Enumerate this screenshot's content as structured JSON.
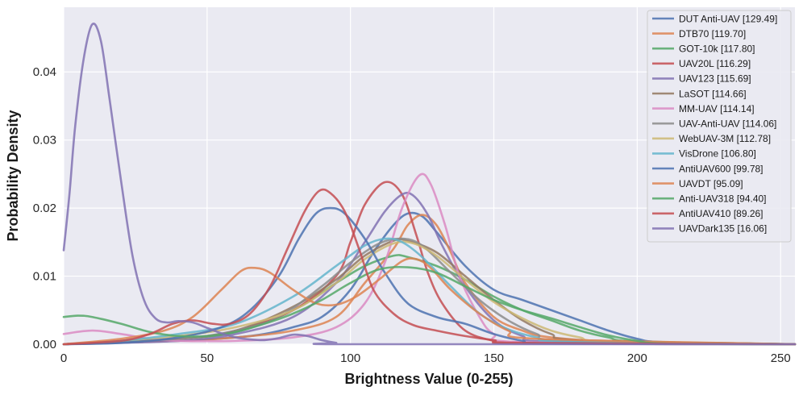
{
  "chart_data": {
    "type": "line",
    "title": "",
    "xlabel": "Brightness Value (0-255)",
    "ylabel": "Probability Density",
    "xlim": [
      0,
      255
    ],
    "ylim": [
      0,
      0.0495
    ],
    "xticks": [
      0,
      50,
      100,
      150,
      200,
      250
    ],
    "yticks": [
      0,
      0.01,
      0.02,
      0.03,
      0.04
    ],
    "xtick_labels": [
      "0",
      "50",
      "100",
      "150",
      "200",
      "250"
    ],
    "ytick_labels": [
      "0.00",
      "0.01",
      "0.02",
      "0.03",
      "0.04"
    ],
    "grid": true,
    "legend_position": "top-right",
    "background": "#eaeaf2",
    "series": [
      {
        "name": "DUT Anti-UAV [129.49]",
        "color": "#4c72b0",
        "points": [
          [
            0,
            0
          ],
          [
            40,
            0.0005
          ],
          [
            60,
            0.001
          ],
          [
            70,
            0.0015
          ],
          [
            80,
            0.0025
          ],
          [
            90,
            0.004
          ],
          [
            100,
            0.008
          ],
          [
            108,
            0.0135
          ],
          [
            115,
            0.0175
          ],
          [
            120,
            0.0192
          ],
          [
            125,
            0.0188
          ],
          [
            130,
            0.0165
          ],
          [
            140,
            0.0115
          ],
          [
            150,
            0.008
          ],
          [
            160,
            0.0065
          ],
          [
            170,
            0.005
          ],
          [
            180,
            0.0035
          ],
          [
            190,
            0.002
          ],
          [
            200,
            0.0008
          ],
          [
            210,
            0.0003
          ],
          [
            255,
            0
          ]
        ]
      },
      {
        "name": "DTB70 [119.70]",
        "color": "#dd8452",
        "points": [
          [
            0,
            0
          ],
          [
            40,
            0.0005
          ],
          [
            60,
            0.001
          ],
          [
            80,
            0.002
          ],
          [
            95,
            0.004
          ],
          [
            105,
            0.009
          ],
          [
            115,
            0.014
          ],
          [
            120,
            0.0175
          ],
          [
            125,
            0.019
          ],
          [
            130,
            0.0175
          ],
          [
            135,
            0.0135
          ],
          [
            140,
            0.009
          ],
          [
            150,
            0.004
          ],
          [
            160,
            0.002
          ],
          [
            170,
            0.001
          ],
          [
            200,
            0.0002
          ],
          [
            255,
            0
          ]
        ]
      },
      {
        "name": "GOT-10k [117.80]",
        "color": "#55a868",
        "points": [
          [
            0,
            0
          ],
          [
            40,
            0.0008
          ],
          [
            60,
            0.0018
          ],
          [
            80,
            0.005
          ],
          [
            95,
            0.009
          ],
          [
            105,
            0.0115
          ],
          [
            115,
            0.013
          ],
          [
            120,
            0.0128
          ],
          [
            130,
            0.0115
          ],
          [
            140,
            0.0095
          ],
          [
            150,
            0.007
          ],
          [
            160,
            0.005
          ],
          [
            170,
            0.0035
          ],
          [
            180,
            0.002
          ],
          [
            190,
            0.001
          ],
          [
            200,
            0.0004
          ],
          [
            255,
            0
          ]
        ]
      },
      {
        "name": "UAV20L [116.29]",
        "color": "#c44e52",
        "points": [
          [
            0,
            0
          ],
          [
            40,
            0.0008
          ],
          [
            60,
            0.002
          ],
          [
            80,
            0.005
          ],
          [
            95,
            0.01
          ],
          [
            100,
            0.015
          ],
          [
            105,
            0.0205
          ],
          [
            112,
            0.0238
          ],
          [
            118,
            0.022
          ],
          [
            123,
            0.016
          ],
          [
            127,
            0.0105
          ],
          [
            132,
            0.006
          ],
          [
            140,
            0.002
          ],
          [
            150,
            0.0005
          ],
          [
            160,
            0.0001
          ],
          [
            255,
            0
          ]
        ]
      },
      {
        "name": "UAV123 [115.69]",
        "color": "#8172b3",
        "points": [
          [
            0,
            0
          ],
          [
            40,
            0.0005
          ],
          [
            60,
            0.0015
          ],
          [
            80,
            0.004
          ],
          [
            95,
            0.009
          ],
          [
            105,
            0.015
          ],
          [
            112,
            0.0195
          ],
          [
            118,
            0.022
          ],
          [
            122,
            0.0218
          ],
          [
            127,
            0.019
          ],
          [
            132,
            0.0145
          ],
          [
            140,
            0.0085
          ],
          [
            150,
            0.0035
          ],
          [
            160,
            0.0012
          ],
          [
            170,
            0.0004
          ],
          [
            255,
            0
          ]
        ]
      },
      {
        "name": "LaSOT [114.66]",
        "color": "#937860",
        "points": [
          [
            0,
            0
          ],
          [
            40,
            0.0008
          ],
          [
            60,
            0.002
          ],
          [
            80,
            0.0055
          ],
          [
            95,
            0.0095
          ],
          [
            105,
            0.013
          ],
          [
            115,
            0.0152
          ],
          [
            120,
            0.0152
          ],
          [
            130,
            0.0135
          ],
          [
            140,
            0.01
          ],
          [
            150,
            0.0065
          ],
          [
            160,
            0.0035
          ],
          [
            170,
            0.0015
          ],
          [
            180,
            0.0006
          ],
          [
            255,
            0
          ]
        ]
      },
      {
        "name": "MM-UAV [114.14]",
        "color": "#da8bc3",
        "points": [
          [
            0,
            0.0015
          ],
          [
            10,
            0.002
          ],
          [
            20,
            0.0015
          ],
          [
            30,
            0.0008
          ],
          [
            40,
            0.0005
          ],
          [
            60,
            0.0005
          ],
          [
            80,
            0.001
          ],
          [
            95,
            0.0025
          ],
          [
            105,
            0.006
          ],
          [
            112,
            0.012
          ],
          [
            118,
            0.02
          ],
          [
            124,
            0.0248
          ],
          [
            128,
            0.0235
          ],
          [
            133,
            0.0175
          ],
          [
            138,
            0.01
          ],
          [
            145,
            0.004
          ],
          [
            150,
            0.0015
          ],
          [
            160,
            0.0003
          ],
          [
            255,
            0
          ]
        ]
      },
      {
        "name": "UAV-Anti-UAV [114.06]",
        "color": "#8c8c8c",
        "points": [
          [
            0,
            0
          ],
          [
            40,
            0.0008
          ],
          [
            60,
            0.002
          ],
          [
            75,
            0.004
          ],
          [
            90,
            0.0085
          ],
          [
            100,
            0.012
          ],
          [
            110,
            0.0148
          ],
          [
            118,
            0.0155
          ],
          [
            125,
            0.0145
          ],
          [
            135,
            0.0105
          ],
          [
            145,
            0.0065
          ],
          [
            155,
            0.0035
          ],
          [
            165,
            0.0015
          ],
          [
            175,
            0.0005
          ],
          [
            255,
            0
          ]
        ]
      },
      {
        "name": "WebUAV-3M [112.78]",
        "color": "#ccb974",
        "points": [
          [
            0,
            0
          ],
          [
            20,
            0.0005
          ],
          [
            40,
            0.0012
          ],
          [
            60,
            0.0025
          ],
          [
            80,
            0.005
          ],
          [
            95,
            0.009
          ],
          [
            105,
            0.0125
          ],
          [
            115,
            0.0148
          ],
          [
            122,
            0.0148
          ],
          [
            130,
            0.013
          ],
          [
            140,
            0.0095
          ],
          [
            150,
            0.0062
          ],
          [
            160,
            0.0038
          ],
          [
            170,
            0.002
          ],
          [
            180,
            0.001
          ],
          [
            190,
            0.0004
          ],
          [
            255,
            0
          ]
        ]
      },
      {
        "name": "VisDrone [106.80]",
        "color": "#64b5cd",
        "points": [
          [
            0,
            0
          ],
          [
            20,
            0.0005
          ],
          [
            40,
            0.0015
          ],
          [
            60,
            0.003
          ],
          [
            80,
            0.007
          ],
          [
            95,
            0.0115
          ],
          [
            105,
            0.0145
          ],
          [
            112,
            0.0155
          ],
          [
            118,
            0.015
          ],
          [
            125,
            0.0128
          ],
          [
            135,
            0.0085
          ],
          [
            145,
            0.0045
          ],
          [
            155,
            0.0022
          ],
          [
            165,
            0.001
          ],
          [
            175,
            0.0004
          ],
          [
            255,
            0
          ]
        ]
      },
      {
        "name": "AntiUAV600 [99.78]",
        "color": "#4c72b0",
        "points": [
          [
            0,
            0
          ],
          [
            20,
            0.0002
          ],
          [
            40,
            0.001
          ],
          [
            55,
            0.0025
          ],
          [
            65,
            0.005
          ],
          [
            75,
            0.01
          ],
          [
            82,
            0.0155
          ],
          [
            88,
            0.0192
          ],
          [
            93,
            0.02
          ],
          [
            98,
            0.0192
          ],
          [
            105,
            0.0155
          ],
          [
            112,
            0.0105
          ],
          [
            120,
            0.006
          ],
          [
            130,
            0.004
          ],
          [
            140,
            0.003
          ],
          [
            150,
            0.0015
          ],
          [
            160,
            0.0005
          ],
          [
            170,
            0.0001
          ],
          [
            255,
            0
          ]
        ]
      },
      {
        "name": "UAVDT [95.09]",
        "color": "#dd8452",
        "points": [
          [
            0,
            0
          ],
          [
            20,
            0.0008
          ],
          [
            35,
            0.002
          ],
          [
            45,
            0.004
          ],
          [
            55,
            0.008
          ],
          [
            62,
            0.0108
          ],
          [
            67,
            0.0112
          ],
          [
            72,
            0.0105
          ],
          [
            80,
            0.008
          ],
          [
            88,
            0.006
          ],
          [
            95,
            0.0058
          ],
          [
            102,
            0.007
          ],
          [
            110,
            0.0095
          ],
          [
            118,
            0.0122
          ],
          [
            123,
            0.0125
          ],
          [
            128,
            0.0112
          ],
          [
            135,
            0.008
          ],
          [
            145,
            0.0045
          ],
          [
            155,
            0.002
          ],
          [
            165,
            0.0008
          ],
          [
            255,
            0
          ]
        ]
      },
      {
        "name": "Anti-UAV318 [94.40]",
        "color": "#55a868",
        "points": [
          [
            0,
            0.004
          ],
          [
            5,
            0.0042
          ],
          [
            10,
            0.004
          ],
          [
            20,
            0.003
          ],
          [
            30,
            0.0018
          ],
          [
            40,
            0.0012
          ],
          [
            50,
            0.0012
          ],
          [
            60,
            0.0018
          ],
          [
            70,
            0.003
          ],
          [
            80,
            0.0045
          ],
          [
            90,
            0.0065
          ],
          [
            100,
            0.009
          ],
          [
            110,
            0.011
          ],
          [
            120,
            0.0113
          ],
          [
            130,
            0.0105
          ],
          [
            140,
            0.0085
          ],
          [
            150,
            0.0065
          ],
          [
            160,
            0.005
          ],
          [
            170,
            0.0038
          ],
          [
            180,
            0.0025
          ],
          [
            190,
            0.0013
          ],
          [
            200,
            0.0005
          ],
          [
            210,
            0.0001
          ],
          [
            255,
            0
          ]
        ]
      },
      {
        "name": "AntiUAV410 [89.26]",
        "color": "#c44e52",
        "points": [
          [
            0,
            0
          ],
          [
            20,
            0.0005
          ],
          [
            30,
            0.0015
          ],
          [
            38,
            0.003
          ],
          [
            45,
            0.0035
          ],
          [
            52,
            0.003
          ],
          [
            58,
            0.003
          ],
          [
            65,
            0.0045
          ],
          [
            72,
            0.0085
          ],
          [
            78,
            0.014
          ],
          [
            84,
            0.0195
          ],
          [
            89,
            0.0225
          ],
          [
            93,
            0.0222
          ],
          [
            98,
            0.0195
          ],
          [
            103,
            0.014
          ],
          [
            108,
            0.008
          ],
          [
            115,
            0.0045
          ],
          [
            122,
            0.0028
          ],
          [
            130,
            0.002
          ],
          [
            140,
            0.0012
          ],
          [
            150,
            0.0006
          ],
          [
            160,
            0.0002
          ],
          [
            255,
            0
          ]
        ]
      },
      {
        "name": "UAVDark135 [16.06]",
        "color": "#8172b3",
        "points": [
          [
            0,
            0.0138
          ],
          [
            2,
            0.022
          ],
          [
            4,
            0.032
          ],
          [
            7,
            0.042
          ],
          [
            10,
            0.047
          ],
          [
            13,
            0.0445
          ],
          [
            16,
            0.036
          ],
          [
            20,
            0.024
          ],
          [
            24,
            0.013
          ],
          [
            28,
            0.0065
          ],
          [
            32,
            0.0038
          ],
          [
            36,
            0.0032
          ],
          [
            40,
            0.0034
          ],
          [
            45,
            0.0032
          ],
          [
            50,
            0.0024
          ],
          [
            55,
            0.0016
          ],
          [
            60,
            0.001
          ],
          [
            65,
            0.0007
          ],
          [
            70,
            0.0006
          ],
          [
            75,
            0.0009
          ],
          [
            80,
            0.0014
          ],
          [
            85,
            0.0012
          ],
          [
            90,
            0.0006
          ],
          [
            95,
            0.0002
          ],
          [
            100,
            0
          ],
          [
            255,
            0
          ]
        ]
      }
    ]
  }
}
